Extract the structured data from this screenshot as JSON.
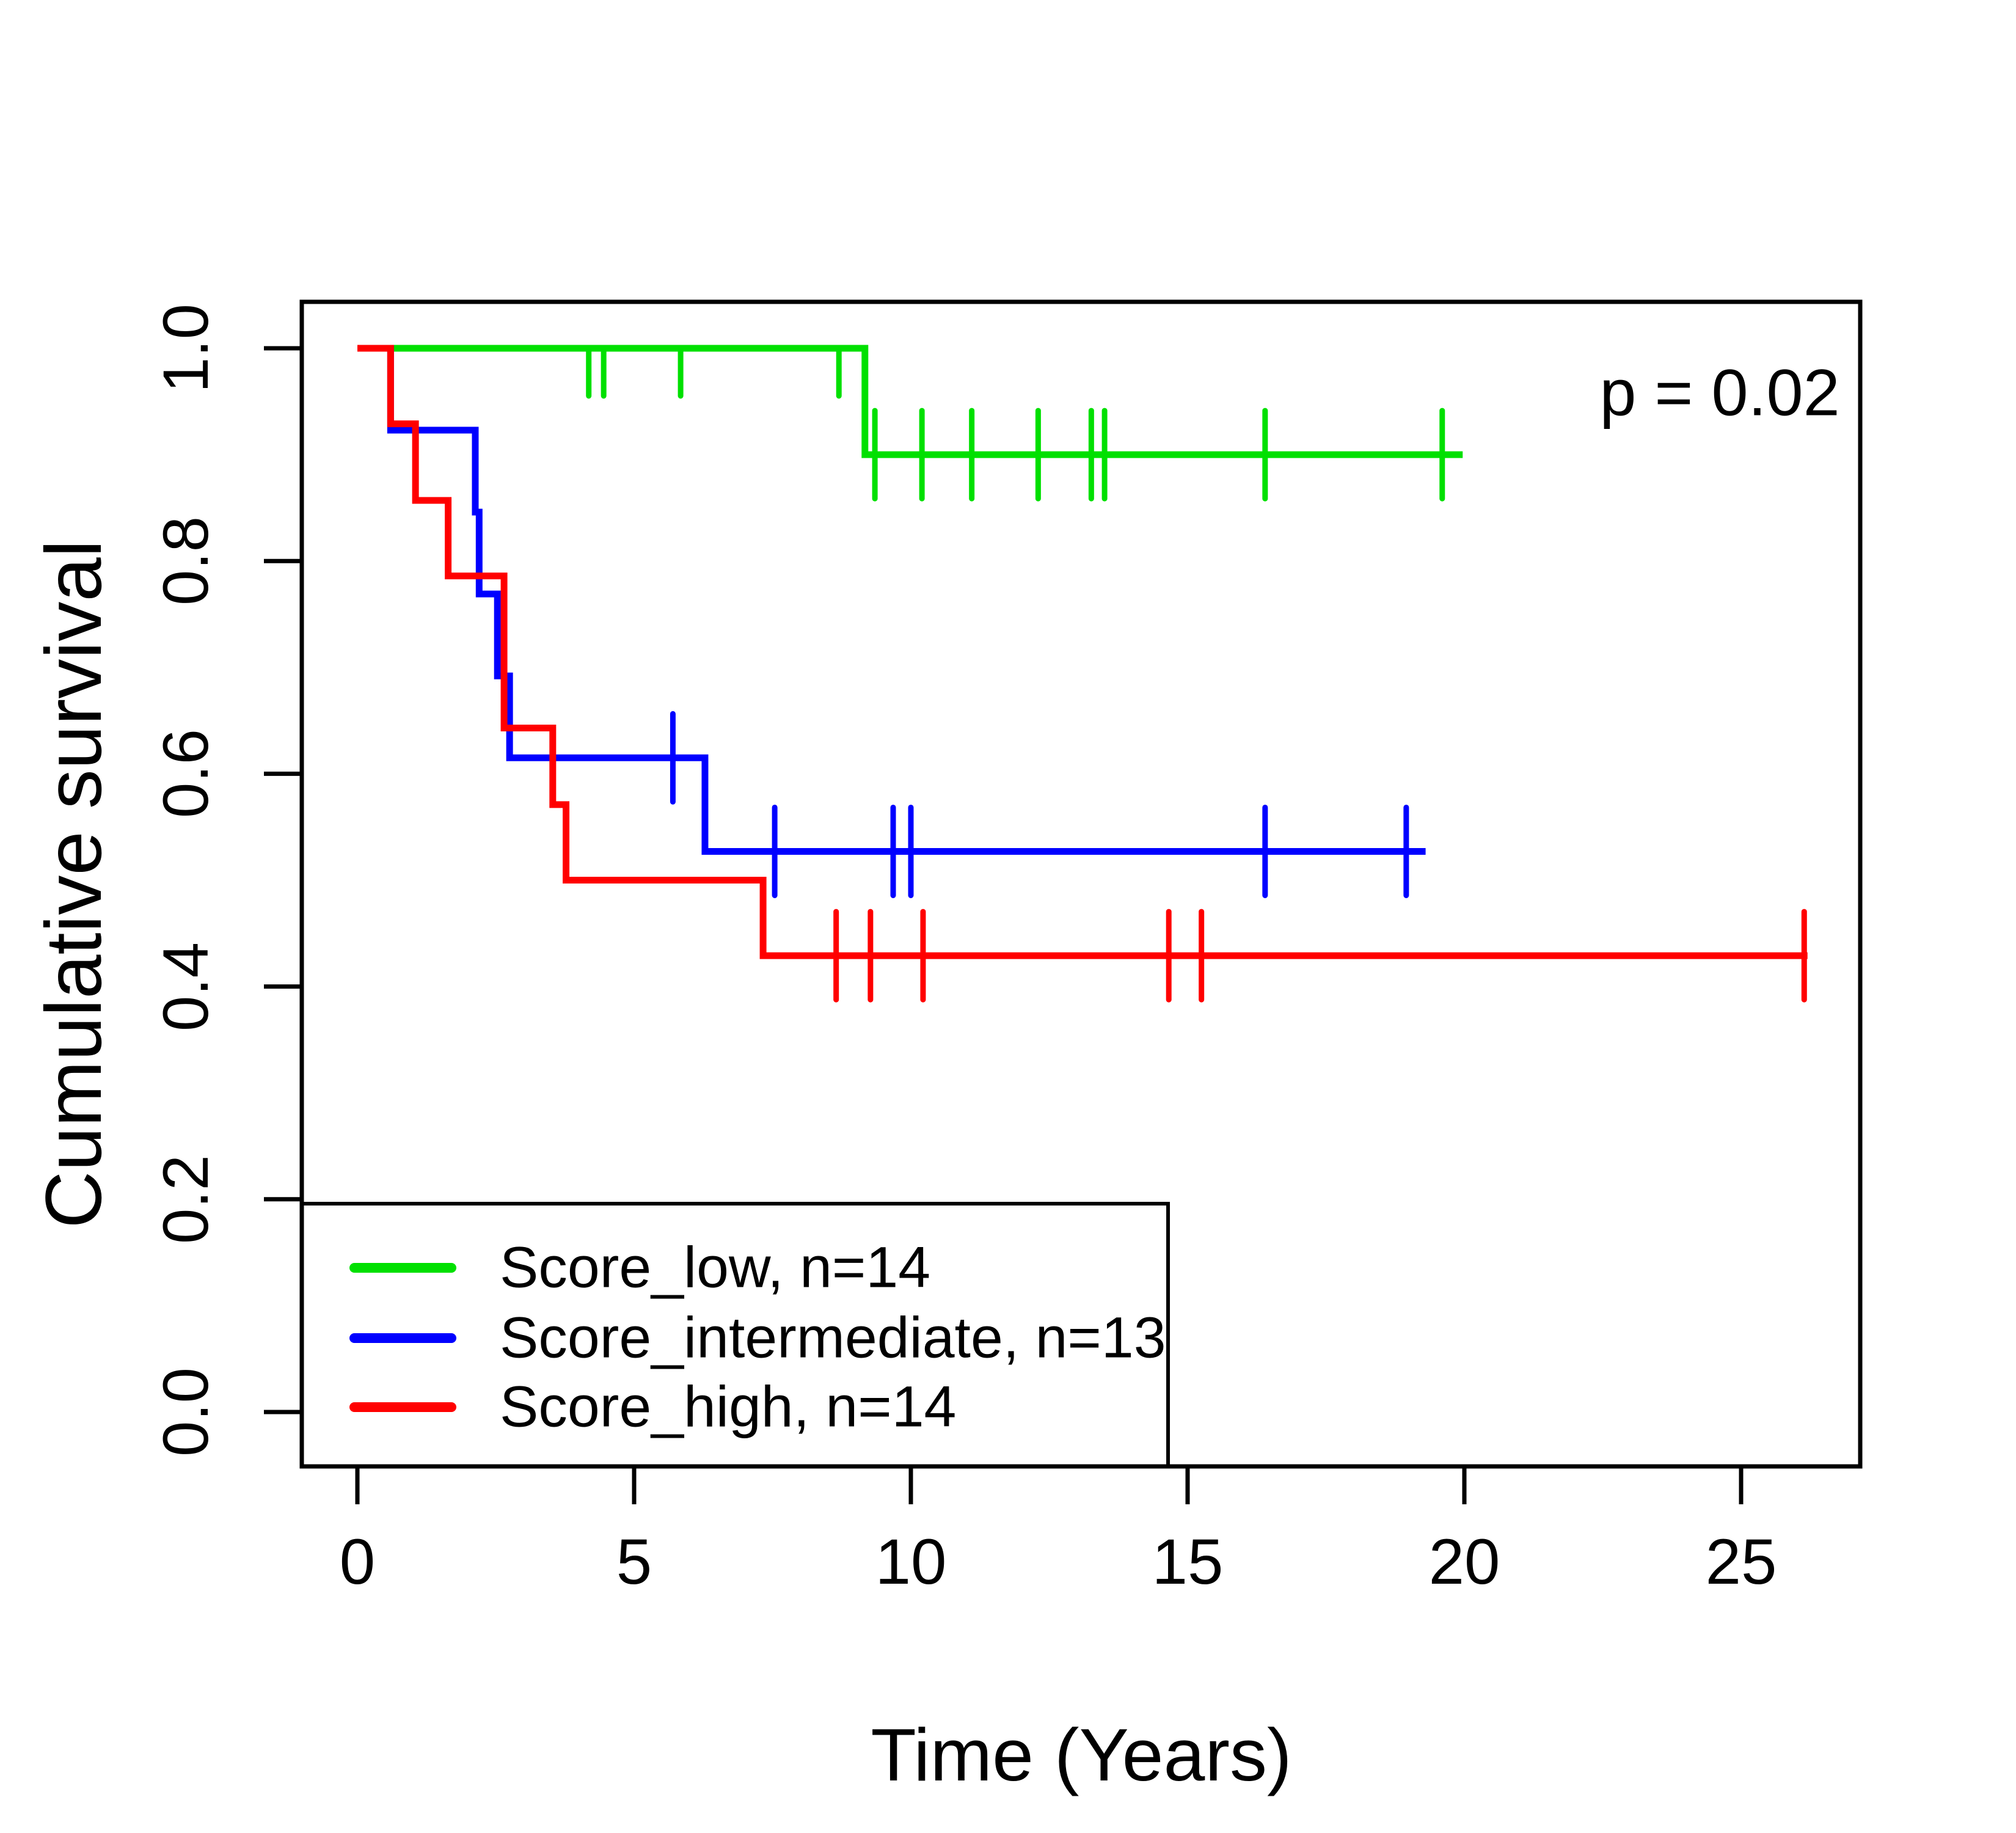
{
  "chart_data": {
    "type": "line",
    "subtype": "kaplan-meier-step-plot",
    "title": "",
    "xlabel": "Time (Years)",
    "ylabel": "Cumulative survival",
    "annotation": "p = 0.02",
    "grid": false,
    "legend_position": "bottom-left",
    "xlim": [
      -1.05,
      27.2
    ],
    "ylim": [
      -0.04,
      1.04
    ],
    "x_ticks": [
      0,
      5,
      10,
      15,
      20,
      25
    ],
    "x_tick_labels": [
      "0",
      "5",
      "10",
      "15",
      "20",
      "25"
    ],
    "y_ticks": [
      0.0,
      0.2,
      0.4,
      0.6,
      0.8,
      1.0
    ],
    "y_tick_labels": [
      "0.0",
      "0.2",
      "0.4",
      "0.6",
      "0.8",
      "1.0"
    ],
    "series": [
      {
        "name": "Score_low",
        "n": 14,
        "label": "Score_low, n=14",
        "color": "#00E000",
        "steps": [
          [
            0,
            1.0
          ],
          [
            9.17,
            0.9
          ]
        ],
        "end_time": 19.97,
        "censors": [
          {
            "t": 4.18,
            "s": 1.0,
            "style": "down"
          },
          {
            "t": 4.45,
            "s": 1.0,
            "style": "down"
          },
          {
            "t": 5.84,
            "s": 1.0,
            "style": "down"
          },
          {
            "t": 8.7,
            "s": 1.0,
            "style": "down"
          },
          {
            "t": 9.35,
            "s": 0.9
          },
          {
            "t": 10.2,
            "s": 0.9
          },
          {
            "t": 11.1,
            "s": 0.9
          },
          {
            "t": 12.3,
            "s": 0.9
          },
          {
            "t": 13.26,
            "s": 0.9
          },
          {
            "t": 13.5,
            "s": 0.9
          },
          {
            "t": 16.4,
            "s": 0.9
          },
          {
            "t": 19.6,
            "s": 0.9
          }
        ]
      },
      {
        "name": "Score_intermediate",
        "n": 13,
        "label": "Score_intermediate, n=13",
        "color": "#0000FF",
        "steps": [
          [
            0,
            1.0
          ],
          [
            0.6,
            0.923
          ],
          [
            2.13,
            0.846
          ],
          [
            2.2,
            0.769
          ],
          [
            2.53,
            0.692
          ],
          [
            2.75,
            0.615
          ],
          [
            6.28,
            0.527
          ]
        ],
        "end_time": 19.3,
        "censors": [
          {
            "t": 5.7,
            "s": 0.615
          },
          {
            "t": 7.54,
            "s": 0.527
          },
          {
            "t": 9.68,
            "s": 0.527
          },
          {
            "t": 10.0,
            "s": 0.527
          },
          {
            "t": 16.4,
            "s": 0.527
          },
          {
            "t": 18.95,
            "s": 0.527
          }
        ]
      },
      {
        "name": "Score_high",
        "n": 14,
        "label": "Score_high, n=14",
        "color": "#FF0000",
        "steps": [
          [
            0,
            1.0
          ],
          [
            0.6,
            0.929
          ],
          [
            1.05,
            0.857
          ],
          [
            1.64,
            0.786
          ],
          [
            2.65,
            0.643
          ],
          [
            3.53,
            0.571
          ],
          [
            3.77,
            0.5
          ],
          [
            7.33,
            0.429
          ]
        ],
        "end_time": 26.2,
        "censors": [
          {
            "t": 8.65,
            "s": 0.429
          },
          {
            "t": 9.27,
            "s": 0.429
          },
          {
            "t": 10.22,
            "s": 0.429
          },
          {
            "t": 14.66,
            "s": 0.429
          },
          {
            "t": 15.25,
            "s": 0.429
          },
          {
            "t": 26.14,
            "s": 0.429
          }
        ]
      }
    ]
  }
}
